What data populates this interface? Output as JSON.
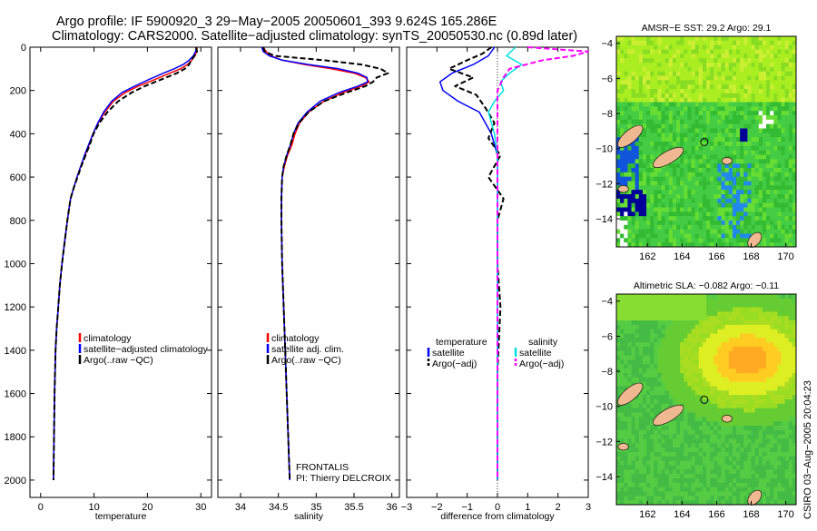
{
  "header": {
    "line1": "Argo profile: IF 5900920_3 29−May−2005 20050601_393 9.624S 165.286E",
    "line2": "Climatology: CARS2000. Satellite−adjusted climatology: synTS_20050530.nc (0.89d later)"
  },
  "side_label": "CSIRO 03−Aug−2005 20:04:23",
  "chart_data": [
    {
      "id": "temperature",
      "type": "line",
      "xlabel": "temperature",
      "ylabel": "",
      "xlim": [
        -2,
        32
      ],
      "ylim": [
        0,
        2080
      ],
      "y_inverted": true,
      "xticks": [
        0,
        10,
        20,
        30
      ],
      "yticks": [
        0,
        200,
        400,
        600,
        800,
        1000,
        1200,
        1400,
        1600,
        1800,
        2000
      ],
      "legend": [
        "climatology",
        "satellite−adjusted climatology",
        "Argo(..raw −QC)"
      ],
      "legend_position": "lower-center",
      "series": [
        {
          "name": "climatology",
          "color": "#ff0000",
          "dash": "",
          "x": [
            29.3,
            29.2,
            28.9,
            28.3,
            27.5,
            26.2,
            24.2,
            21.3,
            18.3,
            15.8,
            13.6,
            12.0,
            10.8,
            9.8,
            9.1,
            8.3,
            7.5,
            6.8,
            6.2,
            5.6,
            5.0,
            4.5,
            4.0,
            3.6,
            3.3,
            3.0,
            2.8,
            2.6,
            2.5,
            2.4
          ],
          "y": [
            0,
            20,
            40,
            60,
            80,
            100,
            120,
            150,
            180,
            210,
            250,
            300,
            350,
            400,
            450,
            500,
            550,
            600,
            650,
            700,
            800,
            900,
            1000,
            1100,
            1200,
            1300,
            1400,
            1600,
            1800,
            2000
          ]
        },
        {
          "name": "satellite−adjusted climatology",
          "color": "#0000ff",
          "dash": "",
          "x": [
            29.2,
            29.0,
            28.6,
            27.8,
            26.7,
            25.0,
            23.0,
            20.2,
            17.6,
            15.2,
            13.3,
            11.8,
            10.7,
            9.8,
            9.0,
            8.2,
            7.5,
            6.8,
            6.2,
            5.6,
            5.0,
            4.5,
            4.0,
            3.6,
            3.3,
            3.0,
            2.8,
            2.6,
            2.5,
            2.4
          ],
          "y": [
            0,
            20,
            40,
            60,
            80,
            100,
            120,
            150,
            180,
            210,
            250,
            300,
            350,
            400,
            450,
            500,
            550,
            600,
            650,
            700,
            800,
            900,
            1000,
            1100,
            1200,
            1300,
            1400,
            1600,
            1800,
            2000
          ]
        },
        {
          "name": "Argo(..raw −QC)",
          "color": "#000000",
          "dash": "6,3",
          "x": [
            29.1,
            29.3,
            28.8,
            28.2,
            27.8,
            27.0,
            25.5,
            22.5,
            19.5,
            17.0,
            14.5,
            12.5,
            11.0,
            9.9,
            9.2,
            8.4,
            7.6,
            6.9,
            6.2,
            5.6,
            5.0,
            4.5,
            4.0,
            3.6,
            3.3,
            3.0,
            2.8,
            2.6,
            2.5,
            2.4
          ],
          "y": [
            0,
            20,
            40,
            60,
            80,
            100,
            120,
            150,
            180,
            210,
            250,
            300,
            350,
            400,
            450,
            500,
            550,
            600,
            650,
            700,
            800,
            900,
            1000,
            1100,
            1200,
            1300,
            1400,
            1600,
            1800,
            2000
          ]
        }
      ]
    },
    {
      "id": "salinity",
      "type": "line",
      "xlabel": "salinity",
      "ylabel": "",
      "xlim": [
        33.7,
        36.1
      ],
      "ylim": [
        0,
        2080
      ],
      "y_inverted": true,
      "xticks": [
        34,
        34.5,
        35,
        35.5,
        36
      ],
      "legend": [
        "climatology",
        "satellite adj. clim.",
        "Argo(..raw −QC)"
      ],
      "legend_position": "lower-center",
      "annotation": [
        "FRONTALIS",
        "PI: Thierry DELCROIX"
      ],
      "series": [
        {
          "name": "climatology",
          "color": "#ff0000",
          "dash": "",
          "x": [
            34.3,
            34.34,
            34.4,
            34.55,
            34.85,
            35.2,
            35.5,
            35.65,
            35.7,
            35.6,
            35.35,
            35.1,
            34.9,
            34.78,
            34.72,
            34.68,
            34.62,
            34.58,
            34.55,
            34.54,
            34.54,
            34.55,
            34.57,
            34.59,
            34.61,
            34.63,
            34.64,
            34.65
          ],
          "y": [
            0,
            20,
            40,
            60,
            80,
            100,
            120,
            140,
            160,
            180,
            210,
            250,
            300,
            350,
            400,
            450,
            500,
            550,
            600,
            700,
            800,
            1000,
            1200,
            1400,
            1600,
            1800,
            1900,
            2000
          ]
        },
        {
          "name": "satellite adj. clim.",
          "color": "#0000ff",
          "dash": "",
          "x": [
            34.28,
            34.3,
            34.38,
            34.55,
            34.9,
            35.3,
            35.55,
            35.67,
            35.68,
            35.55,
            35.3,
            35.05,
            34.88,
            34.76,
            34.7,
            34.66,
            34.61,
            34.57,
            34.55,
            34.54,
            34.54,
            34.55,
            34.57,
            34.59,
            34.61,
            34.63,
            34.64,
            34.65
          ],
          "y": [
            0,
            20,
            40,
            60,
            80,
            100,
            120,
            140,
            160,
            180,
            210,
            250,
            300,
            350,
            400,
            450,
            500,
            550,
            600,
            700,
            800,
            1000,
            1200,
            1400,
            1600,
            1800,
            1900,
            2000
          ]
        },
        {
          "name": "Argo(..raw −QC)",
          "color": "#000000",
          "dash": "6,3",
          "x": [
            34.3,
            34.32,
            34.45,
            35.1,
            35.6,
            35.85,
            35.95,
            35.8,
            35.75,
            35.65,
            35.4,
            35.1,
            34.9,
            34.77,
            34.7,
            34.66,
            34.61,
            34.57,
            34.55,
            34.54,
            34.54,
            34.55,
            34.57,
            34.59,
            34.61,
            34.63,
            34.64,
            34.65
          ],
          "y": [
            0,
            20,
            40,
            60,
            80,
            100,
            120,
            140,
            160,
            180,
            210,
            250,
            300,
            350,
            400,
            450,
            500,
            550,
            600,
            700,
            800,
            1000,
            1200,
            1400,
            1600,
            1800,
            1900,
            2000
          ]
        }
      ]
    },
    {
      "id": "difference",
      "type": "line",
      "xlabel": "difference from climatology",
      "ylabel": "",
      "xlim": [
        -3,
        3
      ],
      "ylim": [
        0,
        2080
      ],
      "y_inverted": true,
      "xticks": [
        -3,
        -2,
        -1,
        0,
        1,
        2,
        3
      ],
      "zero_line": 0,
      "legend_left": [
        "temperature",
        "satellite",
        "Argo(−adj)"
      ],
      "legend_right": [
        "salinity",
        "satellite",
        "Argo(−adj)"
      ],
      "legend_position": "lower-center",
      "series": [
        {
          "name": "satellite",
          "color": "#0000ff",
          "dash": "",
          "x": [
            -0.1,
            -0.3,
            -0.8,
            -1.5,
            -1.9,
            -1.8,
            -1.3,
            -0.6,
            -0.2,
            0,
            0,
            0,
            0
          ],
          "y": [
            0,
            40,
            80,
            120,
            160,
            200,
            250,
            300,
            400,
            500,
            1000,
            1500,
            2000
          ]
        },
        {
          "name": "Argo(−adj)",
          "color": "#000000",
          "dash": "6,3",
          "x": [
            -0.2,
            -0.5,
            -1.0,
            -1.6,
            -0.8,
            -1.4,
            -0.7,
            -0.4,
            -0.1,
            -0.3,
            0.1,
            -0.3,
            0.2,
            0,
            0,
            0.1,
            0,
            0
          ],
          "y": [
            0,
            30,
            60,
            100,
            140,
            180,
            220,
            280,
            350,
            420,
            500,
            600,
            700,
            800,
            1000,
            1200,
            1500,
            2000
          ]
        },
        {
          "name": "satellite",
          "color": "#00e0e0",
          "dash": "",
          "x": [
            0.6,
            0.3,
            0.8,
            0.4,
            0.1,
            0.2,
            -0.1,
            -0.3,
            -0.1,
            0,
            0,
            0,
            0
          ],
          "y": [
            0,
            40,
            80,
            120,
            160,
            200,
            250,
            300,
            400,
            500,
            1000,
            1500,
            2000
          ]
        },
        {
          "name": "Argo(−adj)",
          "color": "#ff00ff",
          "dash": "6,3",
          "x": [
            1.0,
            3.0,
            2.5,
            1.5,
            0.4,
            0.2,
            0,
            0,
            0,
            0,
            0,
            0
          ],
          "y": [
            0,
            20,
            40,
            60,
            100,
            140,
            200,
            300,
            400,
            600,
            1000,
            2000
          ]
        }
      ]
    }
  ],
  "maps": [
    {
      "title": "AMSR−E SST: 29.2 Argo: 29.1",
      "type": "heatmap",
      "xticks": [
        162,
        164,
        166,
        168,
        170
      ],
      "yticks": [
        -4,
        -6,
        -8,
        -10,
        -12,
        -14
      ],
      "xlim": [
        160.2,
        170.6
      ],
      "ylim": [
        -15.6,
        -3.6
      ],
      "argo_location": {
        "lon": 165.286,
        "lat": -9.624
      }
    },
    {
      "title": "Altimetric SLA: −0.082 Argo: −0.11",
      "type": "heatmap",
      "xticks": [
        162,
        164,
        166,
        168,
        170
      ],
      "yticks": [
        -4,
        -6,
        -8,
        -10,
        -12,
        -14
      ],
      "xlim": [
        160.2,
        170.6
      ],
      "ylim": [
        -15.6,
        -3.6
      ],
      "argo_location": {
        "lon": 165.286,
        "lat": -9.624
      }
    }
  ]
}
